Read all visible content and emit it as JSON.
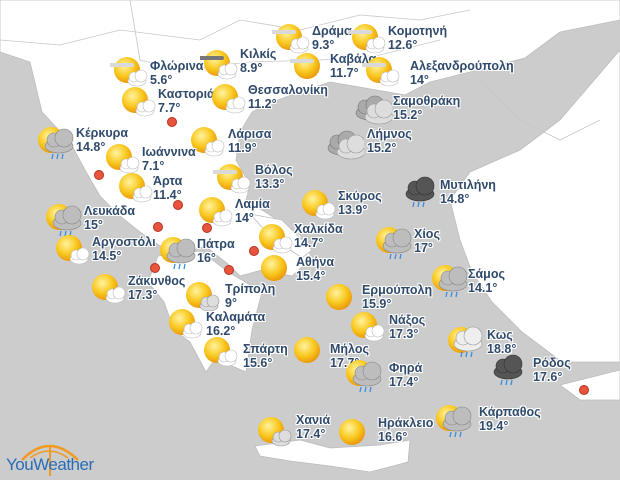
{
  "colors": {
    "sea": "#cccccc",
    "land": "#ffffff",
    "label": "#2f4a6b",
    "marker": "#e8553e",
    "brand_blue": "#2a6db6",
    "brand_orange": "#f29a1f"
  },
  "brand": {
    "name": "YouWeather"
  },
  "cities": [
    {
      "name": "Δράμα",
      "temp": "9.3°",
      "icon": "sun-fog-cloud"
    },
    {
      "name": "Κομοτηνή",
      "temp": "12.6°",
      "icon": "sun-fog-cloud"
    },
    {
      "name": "Κιλκίς",
      "temp": "8.9°",
      "icon": "sun-dark-fog-cloud"
    },
    {
      "name": "Φλώρινα",
      "temp": "5.6°",
      "icon": "sun-fog-cloud"
    },
    {
      "name": "Καβάλα",
      "temp": "11.7°",
      "icon": "sun-fog"
    },
    {
      "name": "Αλεξανδρούπολη",
      "temp": "14°",
      "icon": "sun-fog-cloud"
    },
    {
      "name": "Καστοριά",
      "temp": "7.7°",
      "icon": "sun-cloud"
    },
    {
      "name": "Θεσσαλονίκη",
      "temp": "11.2°",
      "icon": "sun-cloud"
    },
    {
      "name": "Σαμοθράκη",
      "temp": "15.2°",
      "icon": "cloudy"
    },
    {
      "name": "Κέρκυρα",
      "temp": "14.8°",
      "icon": "sun-rain"
    },
    {
      "name": "Λάρισα",
      "temp": "11.9°",
      "icon": "sun-cloud"
    },
    {
      "name": "Λήμνος",
      "temp": "15.2°",
      "icon": "cloudy"
    },
    {
      "name": "Ιωάννινα",
      "temp": "7.1°",
      "icon": "sun-cloud"
    },
    {
      "name": "Βόλος",
      "temp": "13.3°",
      "icon": "sun-fog-cloud"
    },
    {
      "name": "Άρτα",
      "temp": "11.4°",
      "icon": "sun-cloud"
    },
    {
      "name": "Σκύρος",
      "temp": "13.9°",
      "icon": "sun-cloud"
    },
    {
      "name": "Μυτιλήνη",
      "temp": "14.8°",
      "icon": "storm"
    },
    {
      "name": "Λαμία",
      "temp": "14°",
      "icon": "sun-cloud"
    },
    {
      "name": "Λευκάδα",
      "temp": "15°",
      "icon": "sun-rain"
    },
    {
      "name": "Χαλκίδα",
      "temp": "14.7°",
      "icon": "sun-cloud"
    },
    {
      "name": "Χίος",
      "temp": "17°",
      "icon": "sun-rain"
    },
    {
      "name": "Αργοστόλι",
      "temp": "14.5°",
      "icon": "sun-cloud"
    },
    {
      "name": "Πάτρα",
      "temp": "16°",
      "icon": "sun-rain"
    },
    {
      "name": "Αθήνα",
      "temp": "15.4°",
      "icon": "sun"
    },
    {
      "name": "Ζάκυνθος",
      "temp": "17.3°",
      "icon": "sun-cloud"
    },
    {
      "name": "Σάμος",
      "temp": "14.1°",
      "icon": "sun-rain"
    },
    {
      "name": "Τρίπολη",
      "temp": "9°",
      "icon": "sun-grey-cloud"
    },
    {
      "name": "Ερμούπολη",
      "temp": "15.9°",
      "icon": "sun"
    },
    {
      "name": "Καλαμάτα",
      "temp": "16.2°",
      "icon": "sun-cloud"
    },
    {
      "name": "Νάξος",
      "temp": "17.3°",
      "icon": "sun-cloud"
    },
    {
      "name": "Κως",
      "temp": "18.8°",
      "icon": "sun-snow-rain"
    },
    {
      "name": "Σπάρτη",
      "temp": "15.6°",
      "icon": "sun-cloud"
    },
    {
      "name": "Μήλος",
      "temp": "17.7°",
      "icon": "sun"
    },
    {
      "name": "Φηρά",
      "temp": "17.4°",
      "icon": "sun-rain"
    },
    {
      "name": "Ρόδος",
      "temp": "17.6°",
      "icon": "storm"
    },
    {
      "name": "Χανιά",
      "temp": "17.4°",
      "icon": "sun-grey-cloud"
    },
    {
      "name": "Ηράκλειο",
      "temp": "16.6°",
      "icon": "sun"
    },
    {
      "name": "Κάρπαθος",
      "temp": "19.4°",
      "icon": "sun-rain"
    }
  ],
  "markers_count_label": ""
}
